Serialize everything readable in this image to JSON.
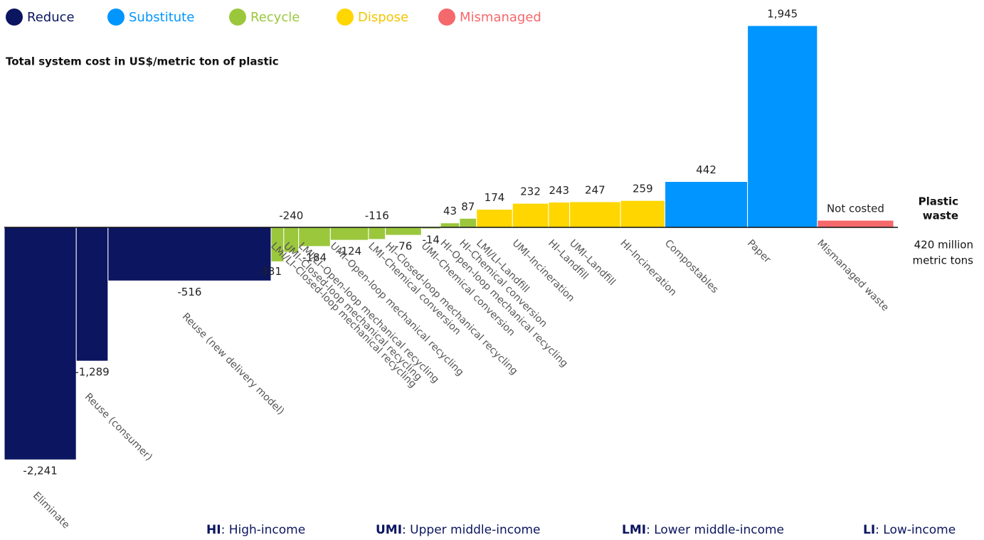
{
  "chart_data": {
    "type": "variable-width-bar",
    "y_label": "Total system cost in US$/metric ton of plastic",
    "x_label_top": [
      "Plastic",
      "waste"
    ],
    "x_label_bottom": [
      "420 million",
      "metric tons"
    ],
    "xlim": [
      0,
      420
    ],
    "series": [
      {
        "name": "Reduce",
        "color": "#0b1560",
        "categories": [
          "Eliminate",
          "Reuse (consumer)",
          "Reuse (new delivery model)"
        ],
        "values": [
          -2241,
          -1289,
          -516
        ],
        "value_labels": [
          "-2,241",
          "-1,289",
          "-516"
        ],
        "widths": [
          34,
          15,
          77
        ]
      },
      {
        "name": "Recycle",
        "color": "#9bc73c",
        "categories": [
          "LMI/LI–Closed-loop mechanical recycling",
          "UMI–Closed-loop mechanical recycling",
          "LMI/LI–Open-loop mechanical recycling",
          "UMI–Open-loop mechanical recycling",
          "LMI–Chemical conversion",
          "HI–Closed-loop mechanical recycling",
          "UMI–Chemical conversion",
          "HI–Open-loop mechanical recycling",
          "HI–Chemical conversion"
        ],
        "values": [
          -331,
          -240,
          -184,
          -124,
          -116,
          -76,
          -14,
          43,
          87
        ],
        "value_labels": [
          "-331",
          "-240",
          "-184",
          "-124",
          "-116",
          "-76",
          "-14",
          "43",
          "87"
        ],
        "widths": [
          6,
          7,
          15,
          18,
          8,
          17,
          9,
          9,
          8
        ]
      },
      {
        "name": "Dispose",
        "color": "#ffd600",
        "categories": [
          "LMI/LI–Landfill",
          "UMI–Incineration",
          "HI–Landfill",
          "UMI–Landfill",
          "HI–Incineration"
        ],
        "values": [
          174,
          232,
          243,
          247,
          259
        ],
        "value_labels": [
          "174",
          "232",
          "243",
          "247",
          "259"
        ],
        "widths": [
          17,
          17,
          10,
          24,
          21
        ]
      },
      {
        "name": "Substitute",
        "color": "#0095ff",
        "categories": [
          "Compostables",
          "Paper"
        ],
        "values": [
          442,
          1945
        ],
        "value_labels": [
          "442",
          "1,945"
        ],
        "widths": [
          39,
          33
        ]
      },
      {
        "name": "Mismanaged",
        "color": "#f5686b",
        "categories": [
          "Mismanaged waste"
        ],
        "values": [
          null
        ],
        "value_labels": [
          "Not costed"
        ],
        "widths": [
          36
        ]
      }
    ],
    "legend_order": [
      0,
      3,
      1,
      2,
      4
    ],
    "notes": [
      {
        "abbr": "HI",
        "label": ": High-income"
      },
      {
        "abbr": "UMI",
        "label": ": Upper middle-income"
      },
      {
        "abbr": "LMI",
        "label": ": Lower middle-income"
      },
      {
        "abbr": "LI",
        "label": ": Low-income"
      }
    ]
  }
}
